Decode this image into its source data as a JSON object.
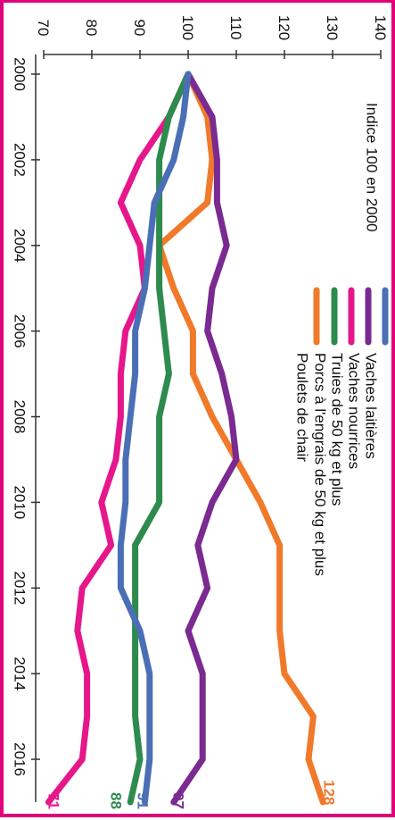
{
  "chart_data": {
    "type": "line",
    "note": "Indice 100 en 2000",
    "x_ticks": [
      "2000",
      "2002",
      "2004",
      "2006",
      "2008",
      "2010",
      "2012",
      "2014",
      "2016"
    ],
    "y_ticks": [
      "70",
      "80",
      "90",
      "100",
      "110",
      "120",
      "130",
      "140"
    ],
    "xlim": [
      2000,
      2017
    ],
    "ylim": [
      70,
      140
    ],
    "grid": false,
    "legend_position": "top-right",
    "x": [
      2000,
      2001,
      2002,
      2003,
      2004,
      2005,
      2006,
      2007,
      2008,
      2009,
      2010,
      2011,
      2012,
      2013,
      2014,
      2015,
      2016,
      2017
    ],
    "series": [
      {
        "name": "Vaches laitières",
        "color": "#4a6fb5",
        "values": [
          100,
          99,
          97,
          93,
          92,
          91,
          89,
          89,
          88,
          87,
          87,
          86,
          86,
          90,
          92,
          92,
          92,
          91
        ],
        "end_label": "91"
      },
      {
        "name": "Vaches nourrices",
        "color": "#7a2a90",
        "values": [
          100,
          105,
          106,
          106,
          108,
          105,
          104,
          107,
          109,
          110,
          105,
          102,
          104,
          100,
          103,
          103,
          103,
          97
        ],
        "end_label": "97"
      },
      {
        "name": "Truies de 50 kg et plus",
        "color": "#e5178b",
        "values": [
          100,
          96,
          90,
          86,
          90,
          91,
          87,
          86,
          86,
          85,
          82,
          84,
          78,
          77,
          79,
          79,
          78,
          71
        ],
        "end_label": "71"
      },
      {
        "name": "Porcs à l'engrais de 50 kg et plus",
        "color": "#2e8b4e",
        "values": [
          100,
          96,
          94,
          94,
          94,
          94,
          95,
          96,
          94,
          94,
          94,
          89,
          89,
          89,
          89,
          89,
          90,
          88
        ],
        "end_label": "88"
      },
      {
        "name": "Poulets de chair",
        "color": "#f07a2a",
        "values": [
          100,
          104,
          105,
          104,
          94,
          97,
          101,
          101,
          105,
          110,
          115,
          119,
          119,
          119,
          120,
          126,
          125,
          128
        ],
        "end_label": "128"
      }
    ]
  }
}
